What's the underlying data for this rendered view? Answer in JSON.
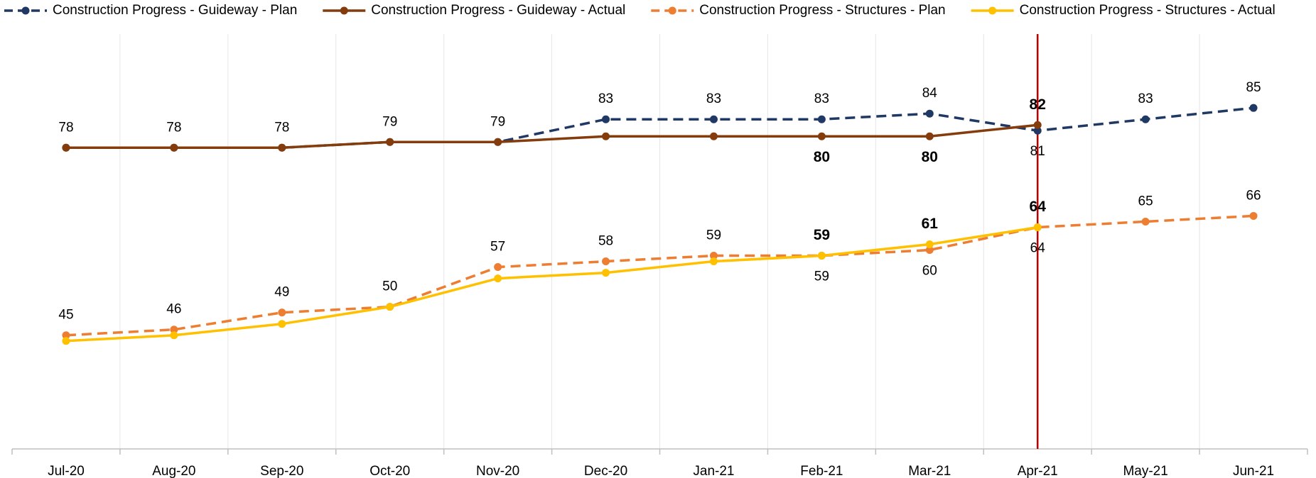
{
  "chart_data": {
    "type": "line",
    "categories": [
      "Jul-20",
      "Aug-20",
      "Sep-20",
      "Oct-20",
      "Nov-20",
      "Dec-20",
      "Jan-21",
      "Feb-21",
      "Mar-21",
      "Apr-21",
      "May-21",
      "Jun-21"
    ],
    "ylim": [
      25,
      98
    ],
    "grid": true,
    "legend": "top",
    "series": [
      {
        "name": "Construction Progress - Guideway - Plan",
        "color": "#203864",
        "dash": true,
        "values": [
          78,
          78,
          78,
          79,
          79,
          83,
          83,
          83,
          84,
          81,
          83,
          85
        ]
      },
      {
        "name": "Construction Progress - Guideway - Actual",
        "color": "#843c0c",
        "dash": false,
        "values": [
          78,
          78,
          78,
          79,
          79,
          80,
          80,
          80,
          80,
          82,
          null,
          null
        ],
        "value_labels": [
          null,
          null,
          null,
          null,
          null,
          null,
          null,
          "80",
          "80",
          "82",
          null,
          null
        ]
      },
      {
        "name": "Construction Progress - Structures - Plan",
        "color": "#ed7d31",
        "dash": true,
        "values": [
          45,
          46,
          49,
          50,
          57,
          58,
          59,
          59,
          60,
          64,
          65,
          66
        ]
      },
      {
        "name": "Construction Progress - Structures - Actual",
        "color": "#ffc000",
        "dash": false,
        "values": [
          44,
          45,
          47,
          50,
          55,
          56,
          58,
          59,
          61,
          64,
          null,
          null
        ],
        "value_labels": [
          null,
          null,
          null,
          null,
          null,
          null,
          null,
          "59",
          "61",
          "64",
          null,
          null
        ]
      }
    ]
  }
}
